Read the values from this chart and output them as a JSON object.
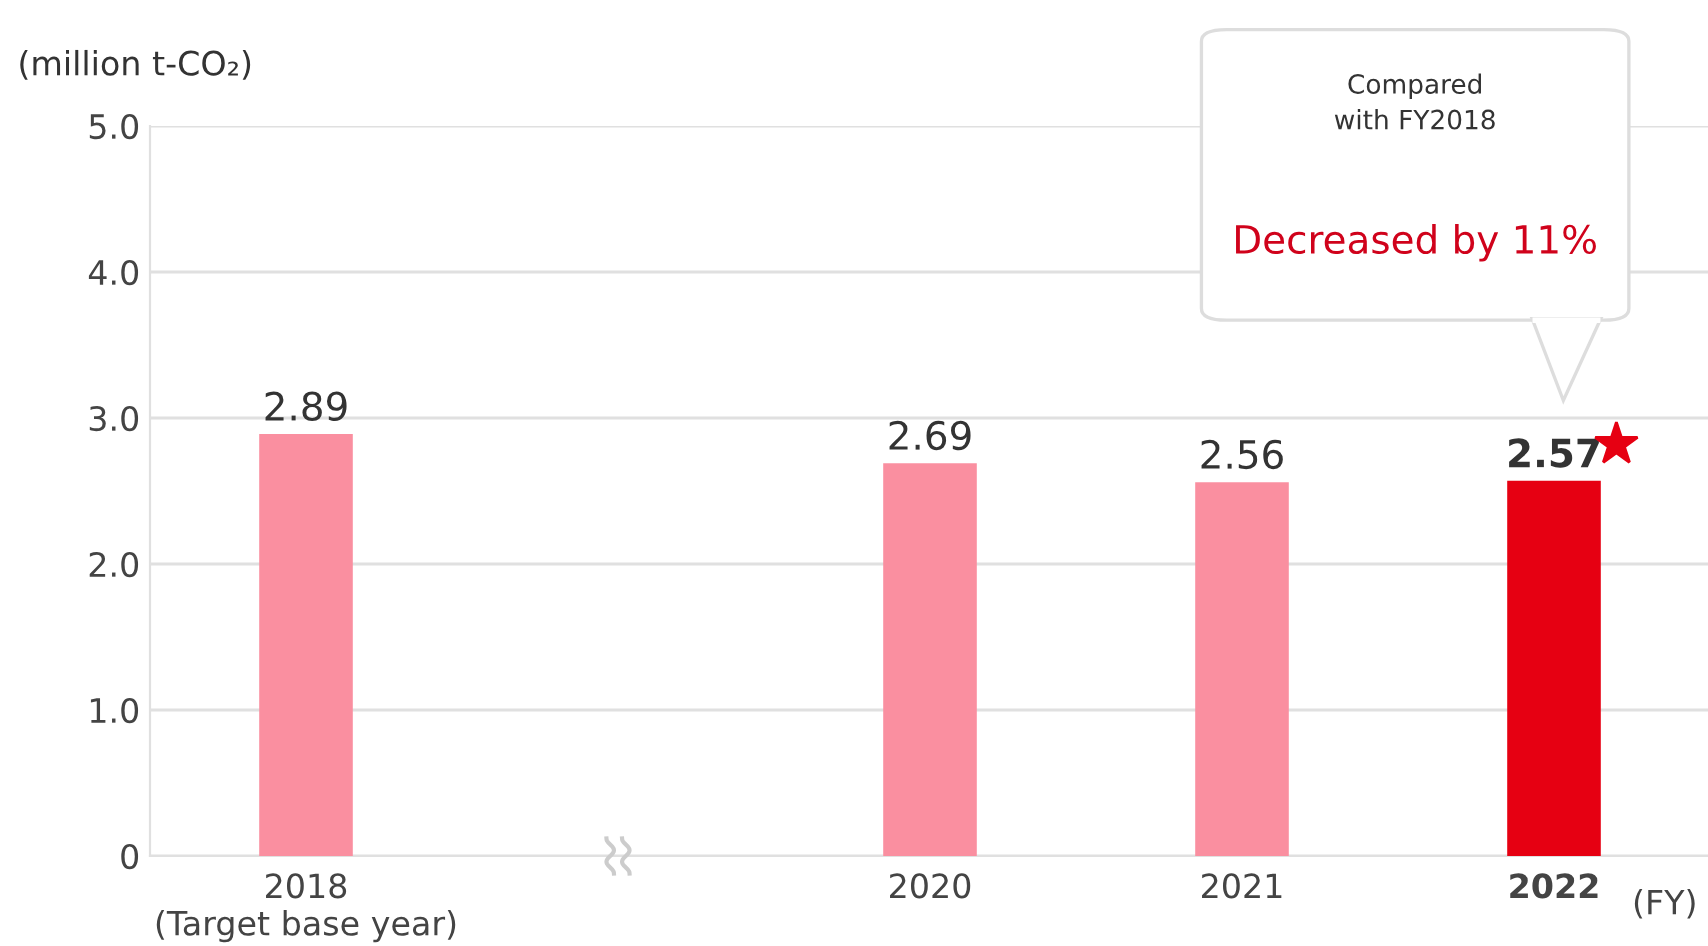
{
  "chart_data": {
    "type": "bar",
    "ylabel": "(million t-CO₂)",
    "xlabel": "(FY)",
    "categories": [
      "2018\n(Target base year)",
      null,
      "2020",
      "2021",
      "2022"
    ],
    "values": [
      2.89,
      null,
      2.69,
      2.56,
      2.57
    ],
    "colors": [
      "#fa8fa0",
      "#fa8fa0",
      "#fa8fa0",
      "#fa8fa0",
      "#e60012"
    ],
    "data_labels": true,
    "ylim": [
      0,
      5
    ],
    "yticks": [
      0,
      {
        "value": 1,
        "label": "1.0"
      },
      {
        "value": 2,
        "label": "2.0"
      },
      {
        "value": 3,
        "label": "3.0"
      },
      {
        "value": 4,
        "label": "4.0"
      },
      {
        "value": 5,
        "label": "5.0"
      }
    ],
    "grid": "y",
    "annotations": [
      "Compared\nwith FY2018",
      "Decreased by 11%"
    ]
  }
}
